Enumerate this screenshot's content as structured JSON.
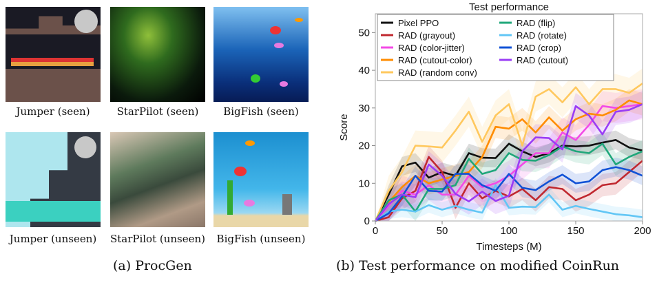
{
  "panel_a": {
    "captions": [
      "Jumper (seen)",
      "StarPilot (seen)",
      "BigFish (seen)",
      "Jumper (unseen)",
      "StarPilot (unseen)",
      "BigFish (unseen)"
    ],
    "subcaption": "(a)  ProcGen"
  },
  "panel_b": {
    "subcaption": "(b)  Test performance on modified CoinRun"
  },
  "chart_data": {
    "type": "line",
    "title": "Test performance",
    "xlabel": "Timesteps (M)",
    "ylabel": "Score",
    "xlim": [
      0,
      200
    ],
    "ylim": [
      0,
      55
    ],
    "xticks": [
      0,
      50,
      100,
      150,
      200
    ],
    "yticks": [
      0,
      10,
      20,
      30,
      40,
      50
    ],
    "legend_position": "top-left",
    "x": [
      0,
      10,
      20,
      30,
      40,
      50,
      60,
      70,
      80,
      90,
      100,
      110,
      120,
      130,
      140,
      150,
      160,
      170,
      180,
      190,
      200
    ],
    "series": [
      {
        "name": "Pixel PPO",
        "color": "#111111",
        "band": 2.5,
        "values": [
          0,
          7,
          14.5,
          15.5,
          11.5,
          13,
          12,
          18,
          16.8,
          16.7,
          20.5,
          18.5,
          17,
          18,
          20,
          19.8,
          20,
          20.8,
          21.5,
          19.5,
          18.7
        ]
      },
      {
        "name": "RAD (grayout)",
        "color": "#c0282f",
        "band": 3,
        "values": [
          0,
          1,
          6,
          8,
          17,
          13,
          3.5,
          10,
          6,
          8,
          6.5,
          8.5,
          5.5,
          9,
          8.5,
          5.5,
          7,
          9.5,
          10,
          13,
          16
        ]
      },
      {
        "name": "RAD (color-jitter)",
        "color": "#f34ae6",
        "band": 4,
        "values": [
          0,
          4,
          8,
          7,
          9.5,
          7,
          7,
          12,
          9,
          10,
          12,
          15,
          18,
          18,
          23.5,
          21.5,
          25.5,
          30.5,
          30,
          30.5,
          31
        ]
      },
      {
        "name": "RAD (cutout-color)",
        "color": "#ff8c00",
        "band": 3,
        "values": [
          0,
          5,
          9,
          12,
          10,
          11,
          12,
          13,
          17,
          25,
          24.5,
          27,
          23.5,
          27.5,
          24,
          27,
          28.5,
          28,
          29.5,
          32,
          31
        ]
      },
      {
        "name": "RAD (random conv)",
        "color": "#ffc85e",
        "band": 4,
        "values": [
          0,
          8,
          13,
          20,
          19.8,
          19.5,
          24,
          29,
          21,
          28,
          31,
          20,
          33,
          35,
          31.5,
          35.5,
          31,
          35,
          35,
          34,
          36.5
        ]
      },
      {
        "name": "RAD (flip)",
        "color": "#1fa77a",
        "band": 3,
        "values": [
          0,
          5.5,
          7,
          2.5,
          8.5,
          8.5,
          9.5,
          16.5,
          12.5,
          13.5,
          18,
          16.2,
          16,
          17.5,
          19.8,
          18.5,
          18,
          20.5,
          15,
          17,
          18.5
        ]
      },
      {
        "name": "RAD (rotate)",
        "color": "#62c6f5",
        "band": 2,
        "values": [
          0,
          2.5,
          3,
          2.5,
          4.2,
          3,
          4,
          3,
          2.2,
          9.5,
          3.5,
          3.8,
          3.7,
          7,
          3,
          4,
          3.2,
          2.5,
          1.8,
          1.5,
          1
        ]
      },
      {
        "name": "RAD (crop)",
        "color": "#1152d6",
        "band": 2.5,
        "values": [
          0,
          2,
          6.5,
          12,
          8,
          7.8,
          12.5,
          12.5,
          9.5,
          8,
          12.5,
          8.8,
          8.2,
          10.5,
          12.3,
          10,
          10.5,
          13.5,
          14.3,
          13.5,
          12
        ]
      },
      {
        "name": "RAD (cutout)",
        "color": "#9a3cf5",
        "band": 3.5,
        "values": [
          0,
          4.5,
          7,
          6.3,
          15,
          12,
          7.2,
          5.2,
          7.8,
          5.3,
          6.7,
          18.5,
          22.2,
          22,
          19,
          30.5,
          28,
          23,
          29,
          29.5,
          31
        ]
      }
    ]
  }
}
